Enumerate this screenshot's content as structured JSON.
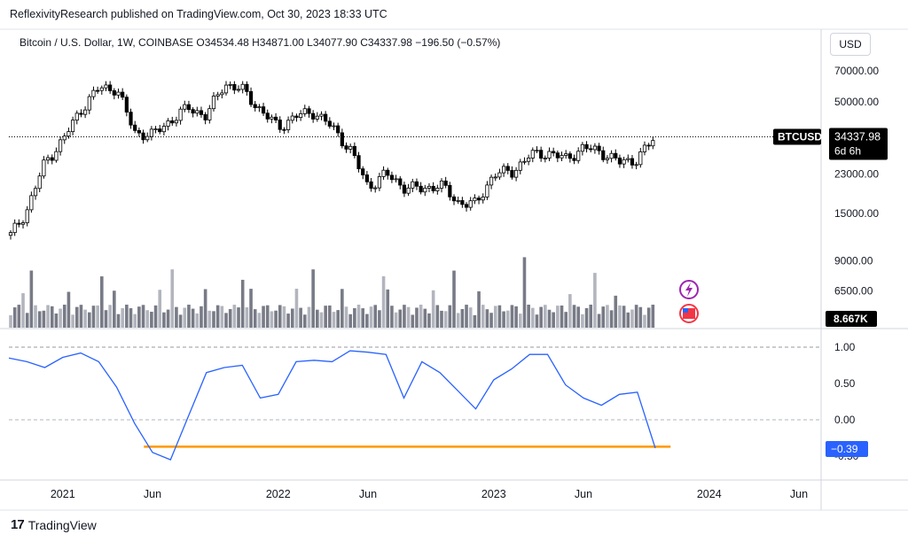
{
  "header": {
    "publisher_line": "ReflexivityResearch published on TradingView.com, Oct 30, 2023 18:33 UTC"
  },
  "legend": {
    "symbol_line": "Bitcoin / U.S. Dollar, 1W, COINBASE",
    "ohlc_line": "O34534.48  H34871.00  L34077.90  C34337.98  −196.50 (−0.57%)"
  },
  "toolbar": {
    "currency_label": "USD"
  },
  "price_badge": {
    "symbol": "BTCUSD",
    "price": "34337.98",
    "countdown": "6d 6h",
    "color": "#000000"
  },
  "volume_badge": {
    "value": "8.667K",
    "color": "#000000"
  },
  "indicator_badge": {
    "value": "−0.39",
    "color": "#2962ff"
  },
  "footer": {
    "brand": "TradingView",
    "logo_glyph": "17"
  },
  "icons": {
    "lightning": "lightning-icon",
    "flag": "us-flag-icon"
  },
  "colors": {
    "candle": "#000000",
    "volume_dark": "#787b86",
    "volume_light": "#b2b5be",
    "indicator_line": "#2962ff",
    "horizontal_line": "#ff9800"
  },
  "chart_data": [
    {
      "type": "candlestick",
      "title": "Bitcoin / U.S. Dollar, 1W, COINBASE",
      "y_scale": "log",
      "y_ticks": [
        70000.0,
        50000.0,
        34337.98,
        23000.0,
        15000.0,
        9000.0,
        6500.0
      ],
      "y_tick_labels": [
        "70000.00",
        "50000.00",
        "23000.00",
        "15000.00",
        "9000.00",
        "6500.00"
      ],
      "x_tick_labels": [
        "2021",
        "Jun",
        "2022",
        "Jun",
        "2023",
        "Jun",
        "2024",
        "Jun"
      ],
      "x_ticks": [
        "2021-01",
        "2021-06",
        "2022-01",
        "2022-06",
        "2023-01",
        "2023-06",
        "2024-01",
        "2024-06"
      ],
      "last_close": 34337.98,
      "close_path": [
        {
          "t": "2020-10",
          "v": 11500
        },
        {
          "t": "2020-11",
          "v": 15500
        },
        {
          "t": "2020-12",
          "v": 26000
        },
        {
          "t": "2021-01",
          "v": 33000
        },
        {
          "t": "2021-02",
          "v": 46000
        },
        {
          "t": "2021-03",
          "v": 58000
        },
        {
          "t": "2021-04",
          "v": 58000
        },
        {
          "t": "2021-05",
          "v": 36000
        },
        {
          "t": "2021-06",
          "v": 35000
        },
        {
          "t": "2021-07",
          "v": 41000
        },
        {
          "t": "2021-08",
          "v": 47000
        },
        {
          "t": "2021-09",
          "v": 43000
        },
        {
          "t": "2021-10",
          "v": 61000
        },
        {
          "t": "2021-11",
          "v": 57000
        },
        {
          "t": "2021-12",
          "v": 46000
        },
        {
          "t": "2022-01",
          "v": 38000
        },
        {
          "t": "2022-02",
          "v": 43000
        },
        {
          "t": "2022-03",
          "v": 45000
        },
        {
          "t": "2022-04",
          "v": 38000
        },
        {
          "t": "2022-05",
          "v": 30000
        },
        {
          "t": "2022-06",
          "v": 20000
        },
        {
          "t": "2022-07",
          "v": 23000
        },
        {
          "t": "2022-08",
          "v": 20000
        },
        {
          "t": "2022-09",
          "v": 19500
        },
        {
          "t": "2022-10",
          "v": 20500
        },
        {
          "t": "2022-11",
          "v": 17000
        },
        {
          "t": "2022-12",
          "v": 16500
        },
        {
          "t": "2023-01",
          "v": 23000
        },
        {
          "t": "2023-02",
          "v": 23500
        },
        {
          "t": "2023-03",
          "v": 28000
        },
        {
          "t": "2023-04",
          "v": 29000
        },
        {
          "t": "2023-05",
          "v": 27000
        },
        {
          "t": "2023-06",
          "v": 30500
        },
        {
          "t": "2023-07",
          "v": 29200
        },
        {
          "t": "2023-08",
          "v": 26000
        },
        {
          "t": "2023-09",
          "v": 27000
        },
        {
          "t": "2023-10",
          "v": 34337.98
        }
      ]
    },
    {
      "type": "bar",
      "title": "Volume",
      "last_value": "8.667K"
    },
    {
      "type": "line",
      "title": "Correlation indicator",
      "y_tick_labels": [
        "1.00",
        "0.50",
        "0.00"
      ],
      "y_ticks": [
        1.0,
        0.5,
        0.0,
        -0.5
      ],
      "ylim": [
        -0.6,
        1.0
      ],
      "last_value": -0.39,
      "horizontal_level": -0.37,
      "horizontal_range": [
        "2021-07",
        "2023-11"
      ],
      "series": [
        {
          "t": "2020-10",
          "v": 0.85
        },
        {
          "t": "2020-11",
          "v": 0.8
        },
        {
          "t": "2020-12",
          "v": 0.72
        },
        {
          "t": "2021-01",
          "v": 0.86
        },
        {
          "t": "2021-02",
          "v": 0.92
        },
        {
          "t": "2021-03",
          "v": 0.8
        },
        {
          "t": "2021-04",
          "v": 0.45
        },
        {
          "t": "2021-05",
          "v": -0.05
        },
        {
          "t": "2021-06",
          "v": -0.45
        },
        {
          "t": "2021-07",
          "v": -0.55
        },
        {
          "t": "2021-08",
          "v": 0.05
        },
        {
          "t": "2021-09",
          "v": 0.65
        },
        {
          "t": "2021-10",
          "v": 0.72
        },
        {
          "t": "2021-11",
          "v": 0.75
        },
        {
          "t": "2021-12",
          "v": 0.3
        },
        {
          "t": "2022-01",
          "v": 0.35
        },
        {
          "t": "2022-02",
          "v": 0.8
        },
        {
          "t": "2022-03",
          "v": 0.82
        },
        {
          "t": "2022-04",
          "v": 0.8
        },
        {
          "t": "2022-05",
          "v": 0.95
        },
        {
          "t": "2022-06",
          "v": 0.93
        },
        {
          "t": "2022-07",
          "v": 0.9
        },
        {
          "t": "2022-08",
          "v": 0.3
        },
        {
          "t": "2022-09",
          "v": 0.8
        },
        {
          "t": "2022-10",
          "v": 0.65
        },
        {
          "t": "2022-11",
          "v": 0.4
        },
        {
          "t": "2022-12",
          "v": 0.15
        },
        {
          "t": "2023-01",
          "v": 0.55
        },
        {
          "t": "2023-02",
          "v": 0.7
        },
        {
          "t": "2023-03",
          "v": 0.9
        },
        {
          "t": "2023-04",
          "v": 0.9
        },
        {
          "t": "2023-05",
          "v": 0.48
        },
        {
          "t": "2023-06",
          "v": 0.3
        },
        {
          "t": "2023-07",
          "v": 0.2
        },
        {
          "t": "2023-08",
          "v": 0.35
        },
        {
          "t": "2023-09",
          "v": 0.38
        },
        {
          "t": "2023-10",
          "v": -0.39
        }
      ]
    }
  ]
}
